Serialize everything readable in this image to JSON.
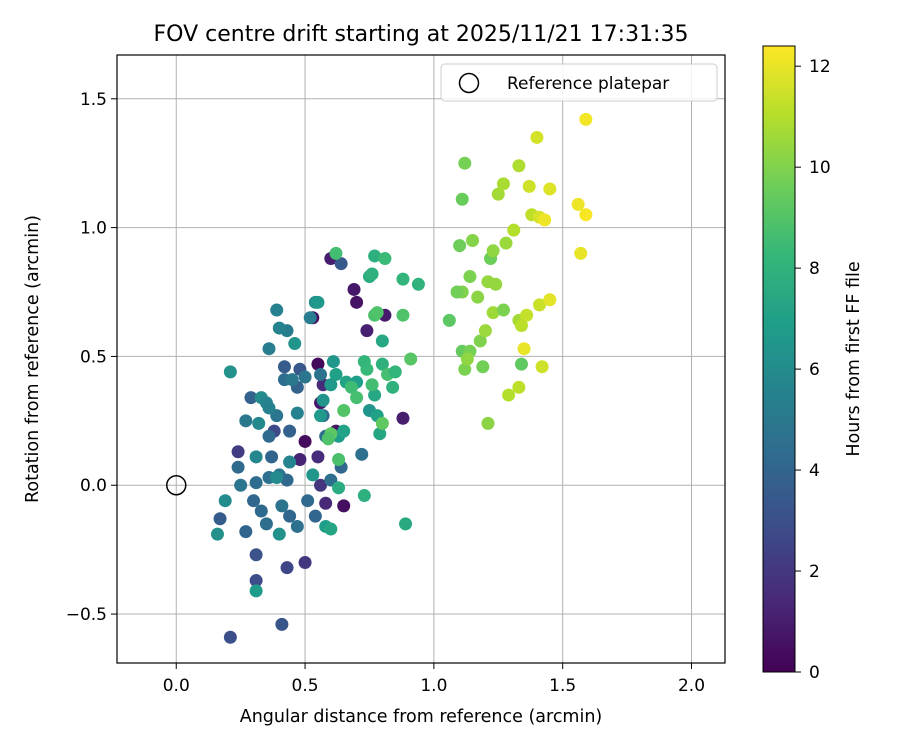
{
  "chart_data": {
    "type": "scatter",
    "title": "FOV centre drift starting at 2025/11/21 17:31:35",
    "xlabel": "Angular distance from reference (arcmin)",
    "ylabel": "Rotation from reference (arcmin)",
    "xlim": [
      -0.23,
      2.13
    ],
    "ylim": [
      -0.69,
      1.67
    ],
    "xticks": [
      0.0,
      0.5,
      1.0,
      1.5,
      2.0
    ],
    "xtick_labels": [
      "0.0",
      "0.5",
      "1.0",
      "1.5",
      "2.0"
    ],
    "yticks": [
      -0.5,
      0.0,
      0.5,
      1.0,
      1.5
    ],
    "ytick_labels": [
      "−0.5",
      "0.0",
      "0.5",
      "1.0",
      "1.5"
    ],
    "grid": true,
    "legend": {
      "position": "top-right",
      "entries": [
        "Reference platepar"
      ]
    },
    "reference_point": {
      "x": 0.0,
      "y": 0.0,
      "label": "Reference platepar"
    },
    "colorbar": {
      "label": "Hours from first FF file",
      "colormap": "viridis",
      "range": [
        0,
        12.4
      ],
      "ticks": [
        0,
        2,
        4,
        6,
        8,
        10,
        12
      ],
      "tick_labels": [
        "0",
        "2",
        "4",
        "6",
        "8",
        "10",
        "12"
      ],
      "stops": [
        "#440154",
        "#482878",
        "#3e4a89",
        "#31688e",
        "#26828e",
        "#1f9e89",
        "#35b779",
        "#6ece58",
        "#b5de2b",
        "#fde725"
      ]
    },
    "points": [
      {
        "x": 0.6,
        "y": 0.88,
        "h": 1.0
      },
      {
        "x": 0.53,
        "y": 0.65,
        "h": 0.5
      },
      {
        "x": 0.69,
        "y": 0.76,
        "h": 0.8
      },
      {
        "x": 0.7,
        "y": 0.71,
        "h": 0.6
      },
      {
        "x": 0.74,
        "y": 0.6,
        "h": 1.1
      },
      {
        "x": 0.81,
        "y": 0.66,
        "h": 0.9
      },
      {
        "x": 0.64,
        "y": 0.86,
        "h": 3.5
      },
      {
        "x": 0.55,
        "y": 0.47,
        "h": 0.3
      },
      {
        "x": 0.57,
        "y": 0.39,
        "h": 1.5
      },
      {
        "x": 0.56,
        "y": 0.32,
        "h": 0.8
      },
      {
        "x": 0.48,
        "y": 0.1,
        "h": 1.2
      },
      {
        "x": 0.5,
        "y": 0.17,
        "h": 0.4
      },
      {
        "x": 0.55,
        "y": 0.11,
        "h": 1.6
      },
      {
        "x": 0.56,
        "y": 0.0,
        "h": 1.9
      },
      {
        "x": 0.58,
        "y": -0.07,
        "h": 1.4
      },
      {
        "x": 0.65,
        "y": -0.08,
        "h": 0.5
      },
      {
        "x": 0.88,
        "y": 0.26,
        "h": 1.0
      },
      {
        "x": 0.62,
        "y": 0.21,
        "h": 0.7
      },
      {
        "x": 0.5,
        "y": -0.3,
        "h": 2.0
      },
      {
        "x": 0.43,
        "y": -0.32,
        "h": 2.6
      },
      {
        "x": 0.31,
        "y": -0.37,
        "h": 2.9
      },
      {
        "x": 0.41,
        "y": -0.54,
        "h": 3.3
      },
      {
        "x": 0.21,
        "y": -0.59,
        "h": 3.0
      },
      {
        "x": 0.31,
        "y": -0.27,
        "h": 3.1
      },
      {
        "x": 0.24,
        "y": 0.13,
        "h": 2.2
      },
      {
        "x": 0.38,
        "y": 0.21,
        "h": 2.7
      },
      {
        "x": 0.44,
        "y": 0.21,
        "h": 3.8
      },
      {
        "x": 0.47,
        "y": 0.38,
        "h": 3.9
      },
      {
        "x": 0.42,
        "y": 0.46,
        "h": 3.6
      },
      {
        "x": 0.48,
        "y": 0.45,
        "h": 3.4
      },
      {
        "x": 0.29,
        "y": 0.34,
        "h": 3.9
      },
      {
        "x": 0.17,
        "y": -0.13,
        "h": 3.6
      },
      {
        "x": 0.27,
        "y": -0.18,
        "h": 4.0
      },
      {
        "x": 0.24,
        "y": 0.07,
        "h": 4.3
      },
      {
        "x": 0.25,
        "y": 0.0,
        "h": 4.8
      },
      {
        "x": 0.31,
        "y": 0.01,
        "h": 4.4
      },
      {
        "x": 0.3,
        "y": -0.06,
        "h": 4.1
      },
      {
        "x": 0.33,
        "y": -0.1,
        "h": 4.2
      },
      {
        "x": 0.35,
        "y": -0.15,
        "h": 4.5
      },
      {
        "x": 0.36,
        "y": 0.03,
        "h": 4.6
      },
      {
        "x": 0.37,
        "y": 0.11,
        "h": 4.0
      },
      {
        "x": 0.36,
        "y": 0.19,
        "h": 4.3
      },
      {
        "x": 0.39,
        "y": 0.27,
        "h": 4.8
      },
      {
        "x": 0.42,
        "y": 0.41,
        "h": 4.4
      },
      {
        "x": 0.45,
        "y": 0.41,
        "h": 5.0
      },
      {
        "x": 0.4,
        "y": 0.04,
        "h": 4.9
      },
      {
        "x": 0.43,
        "y": 0.02,
        "h": 4.2
      },
      {
        "x": 0.41,
        "y": -0.08,
        "h": 4.7
      },
      {
        "x": 0.44,
        "y": -0.12,
        "h": 4.1
      },
      {
        "x": 0.47,
        "y": -0.16,
        "h": 4.6
      },
      {
        "x": 0.51,
        "y": -0.06,
        "h": 4.3
      },
      {
        "x": 0.54,
        "y": -0.12,
        "h": 4.0
      },
      {
        "x": 0.57,
        "y": 0.27,
        "h": 4.2
      },
      {
        "x": 0.58,
        "y": 0.19,
        "h": 4.4
      },
      {
        "x": 0.6,
        "y": 0.02,
        "h": 4.5
      },
      {
        "x": 0.64,
        "y": 0.07,
        "h": 4.1
      },
      {
        "x": 0.72,
        "y": 0.12,
        "h": 4.6
      },
      {
        "x": 0.56,
        "y": 0.43,
        "h": 4.7
      },
      {
        "x": 0.5,
        "y": 0.42,
        "h": 4.9
      },
      {
        "x": 0.52,
        "y": 0.65,
        "h": 5.3
      },
      {
        "x": 0.43,
        "y": 0.6,
        "h": 5.2
      },
      {
        "x": 0.4,
        "y": 0.61,
        "h": 5.5
      },
      {
        "x": 0.39,
        "y": 0.68,
        "h": 5.4
      },
      {
        "x": 0.36,
        "y": 0.53,
        "h": 5.3
      },
      {
        "x": 0.21,
        "y": 0.44,
        "h": 6.3
      },
      {
        "x": 0.19,
        "y": -0.06,
        "h": 6.0
      },
      {
        "x": 0.16,
        "y": -0.19,
        "h": 6.2
      },
      {
        "x": 0.31,
        "y": -0.41,
        "h": 6.8
      },
      {
        "x": 0.32,
        "y": 0.24,
        "h": 5.8
      },
      {
        "x": 0.33,
        "y": 0.34,
        "h": 6.0
      },
      {
        "x": 0.35,
        "y": 0.32,
        "h": 5.6
      },
      {
        "x": 0.27,
        "y": 0.25,
        "h": 5.0
      },
      {
        "x": 0.36,
        "y": 0.3,
        "h": 5.4
      },
      {
        "x": 0.31,
        "y": 0.11,
        "h": 5.7
      },
      {
        "x": 0.39,
        "y": 0.03,
        "h": 5.9
      },
      {
        "x": 0.4,
        "y": -0.19,
        "h": 6.3
      },
      {
        "x": 0.44,
        "y": 0.09,
        "h": 5.6
      },
      {
        "x": 0.47,
        "y": 0.28,
        "h": 5.5
      },
      {
        "x": 0.46,
        "y": 0.55,
        "h": 6.4
      },
      {
        "x": 0.54,
        "y": 0.71,
        "h": 6.2
      },
      {
        "x": 0.55,
        "y": 0.71,
        "h": 6.6
      },
      {
        "x": 0.57,
        "y": 0.33,
        "h": 6.4
      },
      {
        "x": 0.56,
        "y": 0.27,
        "h": 6.7
      },
      {
        "x": 0.53,
        "y": 0.04,
        "h": 6.5
      },
      {
        "x": 0.58,
        "y": -0.16,
        "h": 6.9
      },
      {
        "x": 0.6,
        "y": -0.17,
        "h": 7.3
      },
      {
        "x": 0.63,
        "y": 0.19,
        "h": 6.8
      },
      {
        "x": 0.65,
        "y": 0.21,
        "h": 7.1
      },
      {
        "x": 0.6,
        "y": 0.39,
        "h": 6.6
      },
      {
        "x": 0.62,
        "y": 0.43,
        "h": 7.0
      },
      {
        "x": 0.61,
        "y": 0.48,
        "h": 6.5
      },
      {
        "x": 0.66,
        "y": 0.4,
        "h": 7.2
      },
      {
        "x": 0.7,
        "y": 0.4,
        "h": 6.9
      },
      {
        "x": 0.75,
        "y": 0.29,
        "h": 6.4
      },
      {
        "x": 0.78,
        "y": 0.27,
        "h": 7.0
      },
      {
        "x": 0.77,
        "y": 0.35,
        "h": 7.4
      },
      {
        "x": 0.79,
        "y": 0.2,
        "h": 7.3
      },
      {
        "x": 0.63,
        "y": -0.01,
        "h": 7.6
      },
      {
        "x": 0.73,
        "y": -0.04,
        "h": 7.8
      },
      {
        "x": 0.89,
        "y": -0.15,
        "h": 7.5
      },
      {
        "x": 0.75,
        "y": 0.81,
        "h": 7.6
      },
      {
        "x": 0.77,
        "y": 0.89,
        "h": 7.8
      },
      {
        "x": 0.8,
        "y": 0.56,
        "h": 7.4
      },
      {
        "x": 0.8,
        "y": 0.47,
        "h": 7.9
      },
      {
        "x": 0.84,
        "y": 0.38,
        "h": 8.0
      },
      {
        "x": 0.88,
        "y": 0.8,
        "h": 8.1
      },
      {
        "x": 0.94,
        "y": 0.78,
        "h": 8.0
      },
      {
        "x": 0.73,
        "y": 0.48,
        "h": 8.2
      },
      {
        "x": 0.74,
        "y": 0.45,
        "h": 8.3
      },
      {
        "x": 0.76,
        "y": 0.82,
        "h": 7.9
      },
      {
        "x": 0.81,
        "y": 0.88,
        "h": 8.4
      },
      {
        "x": 0.62,
        "y": 0.9,
        "h": 8.6
      },
      {
        "x": 0.68,
        "y": 0.38,
        "h": 8.5
      },
      {
        "x": 0.7,
        "y": 0.34,
        "h": 8.7
      },
      {
        "x": 0.76,
        "y": 0.39,
        "h": 8.6
      },
      {
        "x": 0.77,
        "y": 0.66,
        "h": 8.8
      },
      {
        "x": 0.78,
        "y": 0.67,
        "h": 8.9
      },
      {
        "x": 0.82,
        "y": 0.43,
        "h": 8.7
      },
      {
        "x": 0.85,
        "y": 0.44,
        "h": 8.1
      },
      {
        "x": 0.88,
        "y": 0.66,
        "h": 8.9
      },
      {
        "x": 0.91,
        "y": 0.49,
        "h": 9.1
      },
      {
        "x": 0.65,
        "y": 0.29,
        "h": 9.0
      },
      {
        "x": 0.8,
        "y": 0.24,
        "h": 9.3
      },
      {
        "x": 0.63,
        "y": 0.1,
        "h": 8.8
      },
      {
        "x": 0.6,
        "y": 0.2,
        "h": 9.2
      },
      {
        "x": 0.59,
        "y": 0.18,
        "h": 8.9
      },
      {
        "x": 1.06,
        "y": 0.64,
        "h": 9.2
      },
      {
        "x": 1.1,
        "y": 0.93,
        "h": 9.6
      },
      {
        "x": 1.11,
        "y": 0.52,
        "h": 9.4
      },
      {
        "x": 1.11,
        "y": 1.11,
        "h": 9.5
      },
      {
        "x": 1.12,
        "y": 1.25,
        "h": 9.8
      },
      {
        "x": 1.14,
        "y": 0.52,
        "h": 9.8
      },
      {
        "x": 1.12,
        "y": 0.45,
        "h": 9.9
      },
      {
        "x": 1.14,
        "y": 0.81,
        "h": 9.9
      },
      {
        "x": 1.15,
        "y": 0.95,
        "h": 10.1
      },
      {
        "x": 1.17,
        "y": 0.73,
        "h": 10.2
      },
      {
        "x": 1.18,
        "y": 0.56,
        "h": 10.0
      },
      {
        "x": 1.19,
        "y": 0.46,
        "h": 9.7
      },
      {
        "x": 1.21,
        "y": 0.24,
        "h": 10.2
      },
      {
        "x": 1.21,
        "y": 0.79,
        "h": 10.4
      },
      {
        "x": 1.22,
        "y": 0.88,
        "h": 9.6
      },
      {
        "x": 1.23,
        "y": 0.91,
        "h": 10.3
      },
      {
        "x": 1.23,
        "y": 0.67,
        "h": 10.6
      },
      {
        "x": 1.24,
        "y": 0.78,
        "h": 10.4
      },
      {
        "x": 1.25,
        "y": 1.13,
        "h": 10.7
      },
      {
        "x": 1.27,
        "y": 1.17,
        "h": 10.8
      },
      {
        "x": 1.27,
        "y": 0.68,
        "h": 9.9
      },
      {
        "x": 1.28,
        "y": 0.94,
        "h": 10.5
      },
      {
        "x": 1.29,
        "y": 0.35,
        "h": 11.0
      },
      {
        "x": 1.31,
        "y": 0.99,
        "h": 11.0
      },
      {
        "x": 1.33,
        "y": 1.24,
        "h": 10.9
      },
      {
        "x": 1.33,
        "y": 0.38,
        "h": 11.2
      },
      {
        "x": 1.33,
        "y": 0.64,
        "h": 10.7
      },
      {
        "x": 1.34,
        "y": 0.62,
        "h": 11.1
      },
      {
        "x": 1.34,
        "y": 0.47,
        "h": 9.3
      },
      {
        "x": 1.35,
        "y": 0.53,
        "h": 12.0
      },
      {
        "x": 1.36,
        "y": 0.66,
        "h": 11.3
      },
      {
        "x": 1.37,
        "y": 1.16,
        "h": 11.5
      },
      {
        "x": 1.38,
        "y": 1.05,
        "h": 11.2
      },
      {
        "x": 1.4,
        "y": 1.35,
        "h": 11.6
      },
      {
        "x": 1.41,
        "y": 0.7,
        "h": 11.4
      },
      {
        "x": 1.41,
        "y": 1.04,
        "h": 11.7
      },
      {
        "x": 1.42,
        "y": 0.46,
        "h": 11.5
      },
      {
        "x": 1.43,
        "y": 1.03,
        "h": 12.1
      },
      {
        "x": 1.45,
        "y": 1.15,
        "h": 11.8
      },
      {
        "x": 1.45,
        "y": 0.72,
        "h": 11.9
      },
      {
        "x": 1.56,
        "y": 1.09,
        "h": 12.1
      },
      {
        "x": 1.57,
        "y": 0.9,
        "h": 12.0
      },
      {
        "x": 1.59,
        "y": 1.42,
        "h": 12.2
      },
      {
        "x": 1.59,
        "y": 1.05,
        "h": 12.3
      },
      {
        "x": 1.11,
        "y": 0.75,
        "h": 10.0
      },
      {
        "x": 1.09,
        "y": 0.75,
        "h": 9.7
      },
      {
        "x": 1.13,
        "y": 0.49,
        "h": 10.3
      },
      {
        "x": 1.2,
        "y": 0.6,
        "h": 10.5
      }
    ]
  }
}
